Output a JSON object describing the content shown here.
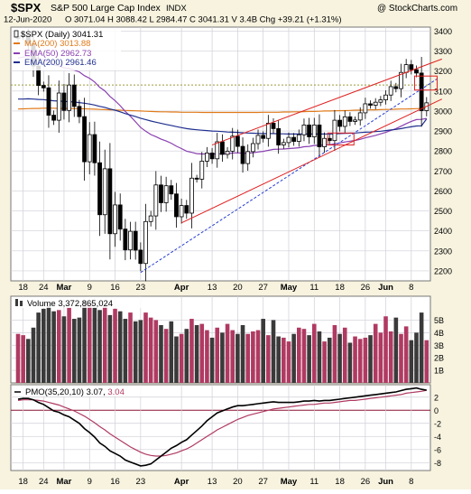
{
  "header": {
    "symbol": "$SPX",
    "name": "S&P 500 Large Cap Index",
    "exchange": "INDX",
    "credit": "@ StockCharts.com",
    "date": "12-Jun-2020",
    "quote": "O 3071.04  H 3088.42  L 2984.47  C 3041.31  V 3.4B  Chg +39.21 (+1.31%)"
  },
  "price_panel": {
    "legend": [
      {
        "label": "$SPX (Daily) 3041.31",
        "color": "#000000",
        "swatch": "candle"
      },
      {
        "label": "MA(200) 3013.88",
        "color": "#e07a1a",
        "swatch": "line"
      },
      {
        "label": "EMA(50) 2962.73",
        "color": "#8a3fb0",
        "swatch": "line"
      },
      {
        "label": "EMA(200) 2961.46",
        "color": "#1f2f8f",
        "swatch": "line"
      }
    ],
    "y_ticks": [
      "2200",
      "2300",
      "2400",
      "2500",
      "2600",
      "2700",
      "2800",
      "2900",
      "3000",
      "3100",
      "3200",
      "3300",
      "3400"
    ]
  },
  "volume_panel": {
    "label": "Volume 3,372,865,024",
    "y_ticks": [
      "1B",
      "2B",
      "3B",
      "4B",
      "5B"
    ]
  },
  "pmo_panel": {
    "label_prefix": "PMO(35,20,10) 3.07,",
    "label_signal": " 3.04",
    "y_ticks": [
      "2",
      "0",
      "-2",
      "-4",
      "-6",
      "-8"
    ]
  },
  "x_ticks": [
    {
      "label": "18",
      "i": 1
    },
    {
      "label": "24",
      "i": 5
    },
    {
      "label": "Mar",
      "i": 9
    },
    {
      "label": "9",
      "i": 14
    },
    {
      "label": "16",
      "i": 19
    },
    {
      "label": "23",
      "i": 24
    },
    {
      "label": "Apr",
      "i": 32
    },
    {
      "label": "13",
      "i": 38
    },
    {
      "label": "20",
      "i": 43
    },
    {
      "label": "27",
      "i": 48
    },
    {
      "label": "May",
      "i": 53
    },
    {
      "label": "11",
      "i": 58
    },
    {
      "label": "18",
      "i": 63
    },
    {
      "label": "26",
      "i": 68
    },
    {
      "label": "Jun",
      "i": 72
    },
    {
      "label": "8",
      "i": 77
    }
  ],
  "colors": {
    "background": "#f7f3df",
    "plot": "#ffffff",
    "grid": "#cfcfd8",
    "up_volume": "#b03a62",
    "down_volume": "#3a3a3a",
    "trendline": "#e02020",
    "dashed": "#2a3fd0",
    "pmo": "#000000",
    "pmo_signal": "#b03a62",
    "hline_price": "#9b9b3a",
    "zero_line": "#8b1030"
  },
  "chart_data": {
    "type": "candlestick",
    "title": "$SPX S&P 500 Large Cap Index INDX",
    "ylim": [
      2150,
      3420
    ],
    "close": [
      3373,
      3380,
      3337,
      3225,
      3128,
      3116,
      2979,
      2954,
      3090,
      3003,
      3130,
      3023,
      2972,
      2746,
      2882,
      2741,
      2481,
      2711,
      2386,
      2530,
      2409,
      2305,
      2398,
      2304,
      2237,
      2447,
      2475,
      2630,
      2541,
      2626,
      2585,
      2471,
      2527,
      2489,
      2664,
      2659,
      2749,
      2790,
      2761,
      2846,
      2783,
      2799,
      2874,
      2823,
      2737,
      2797,
      2837,
      2878,
      2863,
      2939,
      2912,
      2830,
      2842,
      2868,
      2848,
      2881,
      2930,
      2871,
      2930,
      2821,
      2863,
      2852,
      2954,
      2923,
      2971,
      2948,
      2955,
      2991,
      3036,
      3029,
      3044,
      3056,
      3080,
      3122,
      3112,
      3193,
      3232,
      3207,
      3190,
      3002,
      3041
    ],
    "ma200": [
      3010,
      3011,
      3012,
      3013,
      3013,
      3014,
      3014,
      3014,
      3013,
      3013,
      3013,
      3012,
      3012,
      3011,
      3010,
      3009,
      3008,
      3007,
      3006,
      3005,
      3004,
      3003,
      3002,
      3001,
      3000,
      2999,
      2998,
      2997,
      2996,
      2996,
      2995,
      2995,
      2994,
      2994,
      2994,
      2994,
      2993,
      2993,
      2993,
      2993,
      2993,
      2993,
      2993,
      2993,
      2993,
      2993,
      2993,
      2993,
      2994,
      2994,
      2994,
      2994,
      2995,
      2995,
      2996,
      2996,
      2997,
      2998,
      2998,
      2999,
      3000,
      3000,
      3001,
      3002,
      3002,
      3003,
      3004,
      3004,
      3005,
      3006,
      3006,
      3007,
      3008,
      3008,
      3009,
      3010,
      3010,
      3011,
      3012,
      3013,
      3014
    ],
    "ema50": [
      3265,
      3270,
      3272,
      3270,
      3263,
      3256,
      3243,
      3231,
      3225,
      3216,
      3213,
      3205,
      3196,
      3177,
      3164,
      3145,
      3118,
      3101,
      3073,
      3052,
      3027,
      2998,
      2974,
      2946,
      2918,
      2899,
      2882,
      2872,
      2859,
      2850,
      2839,
      2824,
      2812,
      2799,
      2793,
      2787,
      2785,
      2785,
      2784,
      2786,
      2786,
      2786,
      2790,
      2791,
      2789,
      2789,
      2791,
      2795,
      2798,
      2803,
      2808,
      2809,
      2810,
      2812,
      2814,
      2816,
      2821,
      2823,
      2828,
      2828,
      2830,
      2831,
      2836,
      2840,
      2845,
      2849,
      2853,
      2858,
      2866,
      2872,
      2878,
      2886,
      2893,
      2903,
      2912,
      2924,
      2937,
      2948,
      2957,
      2958,
      2963
    ],
    "ema200": [
      3060,
      3060,
      3061,
      3060,
      3058,
      3057,
      3054,
      3051,
      3050,
      3048,
      3047,
      3045,
      3042,
      3039,
      3035,
      3030,
      3023,
      3018,
      3010,
      3004,
      2996,
      2987,
      2980,
      2972,
      2964,
      2957,
      2950,
      2944,
      2938,
      2933,
      2928,
      2922,
      2917,
      2912,
      2909,
      2906,
      2904,
      2902,
      2900,
      2899,
      2897,
      2895,
      2894,
      2893,
      2891,
      2890,
      2889,
      2888,
      2887,
      2887,
      2887,
      2886,
      2886,
      2885,
      2885,
      2885,
      2885,
      2885,
      2885,
      2885,
      2885,
      2885,
      2886,
      2887,
      2888,
      2889,
      2890,
      2892,
      2894,
      2895,
      2897,
      2899,
      2902,
      2905,
      2908,
      2912,
      2917,
      2921,
      2925,
      2926,
      2961
    ],
    "volume_billion": [
      3.9,
      3.8,
      3.5,
      4.4,
      5.6,
      5.9,
      6.1,
      5.7,
      5.8,
      5.3,
      6.0,
      5.1,
      5.2,
      6.5,
      6.3,
      6.0,
      5.8,
      6.1,
      5.4,
      5.9,
      5.7,
      5.1,
      5.6,
      4.9,
      5.0,
      5.6,
      5.2,
      5.0,
      4.6,
      4.3,
      4.9,
      3.7,
      3.9,
      4.3,
      5.1,
      4.6,
      4.7,
      4.2,
      3.6,
      4.4,
      4.0,
      4.7,
      4.2,
      3.9,
      4.6,
      3.9,
      4.1,
      4.2,
      5.1,
      3.8,
      5.0,
      3.7,
      3.6,
      3.3,
      3.9,
      4.4,
      4.3,
      3.8,
      4.7,
      4.1,
      3.3,
      3.6,
      4.6,
      3.9,
      4.4,
      3.2,
      3.7,
      3.5,
      3.6,
      3.8,
      4.7,
      4.0,
      5.3,
      4.1,
      5.2,
      3.9,
      4.5,
      3.4,
      4.0,
      5.6,
      3.4
    ],
    "pmo": [
      1.7,
      1.8,
      1.8,
      1.6,
      1.2,
      0.9,
      0.4,
      -0.1,
      -0.3,
      -0.7,
      -1.0,
      -1.5,
      -2.0,
      -2.8,
      -3.4,
      -4.1,
      -5.0,
      -5.5,
      -6.2,
      -6.6,
      -7.0,
      -7.6,
      -7.9,
      -8.2,
      -8.5,
      -8.4,
      -8.2,
      -7.6,
      -7.0,
      -6.4,
      -5.8,
      -5.4,
      -4.9,
      -4.5,
      -3.8,
      -3.1,
      -2.4,
      -1.6,
      -1.0,
      -0.4,
      -0.1,
      0.2,
      0.5,
      0.7,
      0.7,
      0.8,
      0.9,
      1.0,
      1.1,
      1.2,
      1.3,
      1.2,
      1.2,
      1.2,
      1.2,
      1.3,
      1.4,
      1.4,
      1.5,
      1.4,
      1.5,
      1.5,
      1.6,
      1.7,
      1.8,
      1.9,
      2.0,
      2.1,
      2.2,
      2.3,
      2.4,
      2.5,
      2.6,
      2.7,
      2.8,
      3.0,
      3.2,
      3.3,
      3.4,
      3.2,
      3.07
    ],
    "pmo_signal": [
      1.5,
      1.6,
      1.6,
      1.6,
      1.5,
      1.4,
      1.2,
      1.0,
      0.8,
      0.5,
      0.2,
      -0.1,
      -0.5,
      -0.9,
      -1.4,
      -1.9,
      -2.5,
      -3.0,
      -3.6,
      -4.1,
      -4.6,
      -5.1,
      -5.6,
      -6.0,
      -6.4,
      -6.7,
      -6.9,
      -7.0,
      -7.0,
      -6.9,
      -6.7,
      -6.5,
      -6.2,
      -5.9,
      -5.5,
      -5.0,
      -4.5,
      -4.0,
      -3.5,
      -3.0,
      -2.6,
      -2.2,
      -1.8,
      -1.4,
      -1.1,
      -0.8,
      -0.6,
      -0.4,
      -0.2,
      0.0,
      0.2,
      0.3,
      0.4,
      0.5,
      0.6,
      0.7,
      0.8,
      0.9,
      0.9,
      1.0,
      1.1,
      1.1,
      1.2,
      1.3,
      1.4,
      1.5,
      1.5,
      1.6,
      1.7,
      1.8,
      1.9,
      2.0,
      2.1,
      2.2,
      2.3,
      2.4,
      2.6,
      2.7,
      2.8,
      2.9,
      3.04
    ],
    "volume_ylim": [
      0,
      6.9
    ],
    "pmo_ylim": [
      -9.2,
      3.9
    ]
  }
}
